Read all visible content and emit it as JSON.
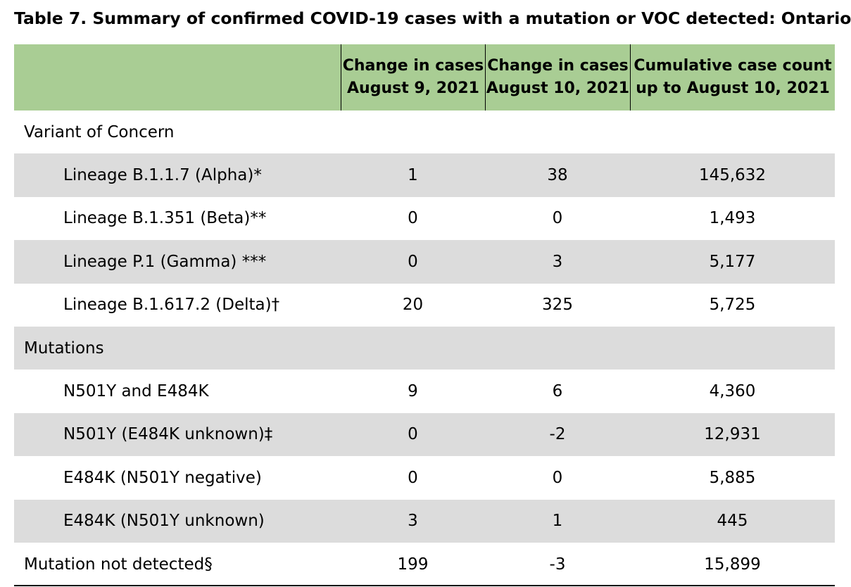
{
  "title": "Table 7. Summary of confirmed COVID-19 cases with a mutation or VOC detected: Ontario",
  "header": {
    "col1": [
      "Change in cases",
      "August 9, 2021"
    ],
    "col2": [
      "Change in cases",
      "August 10, 2021"
    ],
    "col3": [
      "Cumulative case count",
      "up to August 10, 2021"
    ]
  },
  "rows": [
    {
      "label": "Variant of Concern",
      "v1": "",
      "v2": "",
      "v3": ""
    },
    {
      "label": "Lineage B.1.1.7 (Alpha)*",
      "v1": "1",
      "v2": "38",
      "v3": "145,632"
    },
    {
      "label": "Lineage B.1.351 (Beta)**",
      "v1": "0",
      "v2": "0",
      "v3": "1,493"
    },
    {
      "label": "Lineage P.1 (Gamma) ***",
      "v1": "0",
      "v2": "3",
      "v3": "5,177"
    },
    {
      "label": "Lineage B.1.617.2 (Delta)†",
      "v1": "20",
      "v2": "325",
      "v3": "5,725"
    },
    {
      "label": "Mutations",
      "v1": "",
      "v2": "",
      "v3": ""
    },
    {
      "label": "N501Y and E484K",
      "v1": "9",
      "v2": "6",
      "v3": "4,360"
    },
    {
      "label": "N501Y (E484K unknown)‡",
      "v1": "0",
      "v2": "-2",
      "v3": "12,931"
    },
    {
      "label": "E484K (N501Y negative)",
      "v1": "0",
      "v2": "0",
      "v3": "5,885"
    },
    {
      "label": "E484K (N501Y unknown)",
      "v1": "3",
      "v2": "1",
      "v3": "445"
    },
    {
      "label": "Mutation not detected§",
      "v1": "199",
      "v2": "-3",
      "v3": "15,899"
    }
  ],
  "colors": {
    "header_bg": "#a9cd94",
    "shaded_row_bg": "#dcdcdc"
  }
}
